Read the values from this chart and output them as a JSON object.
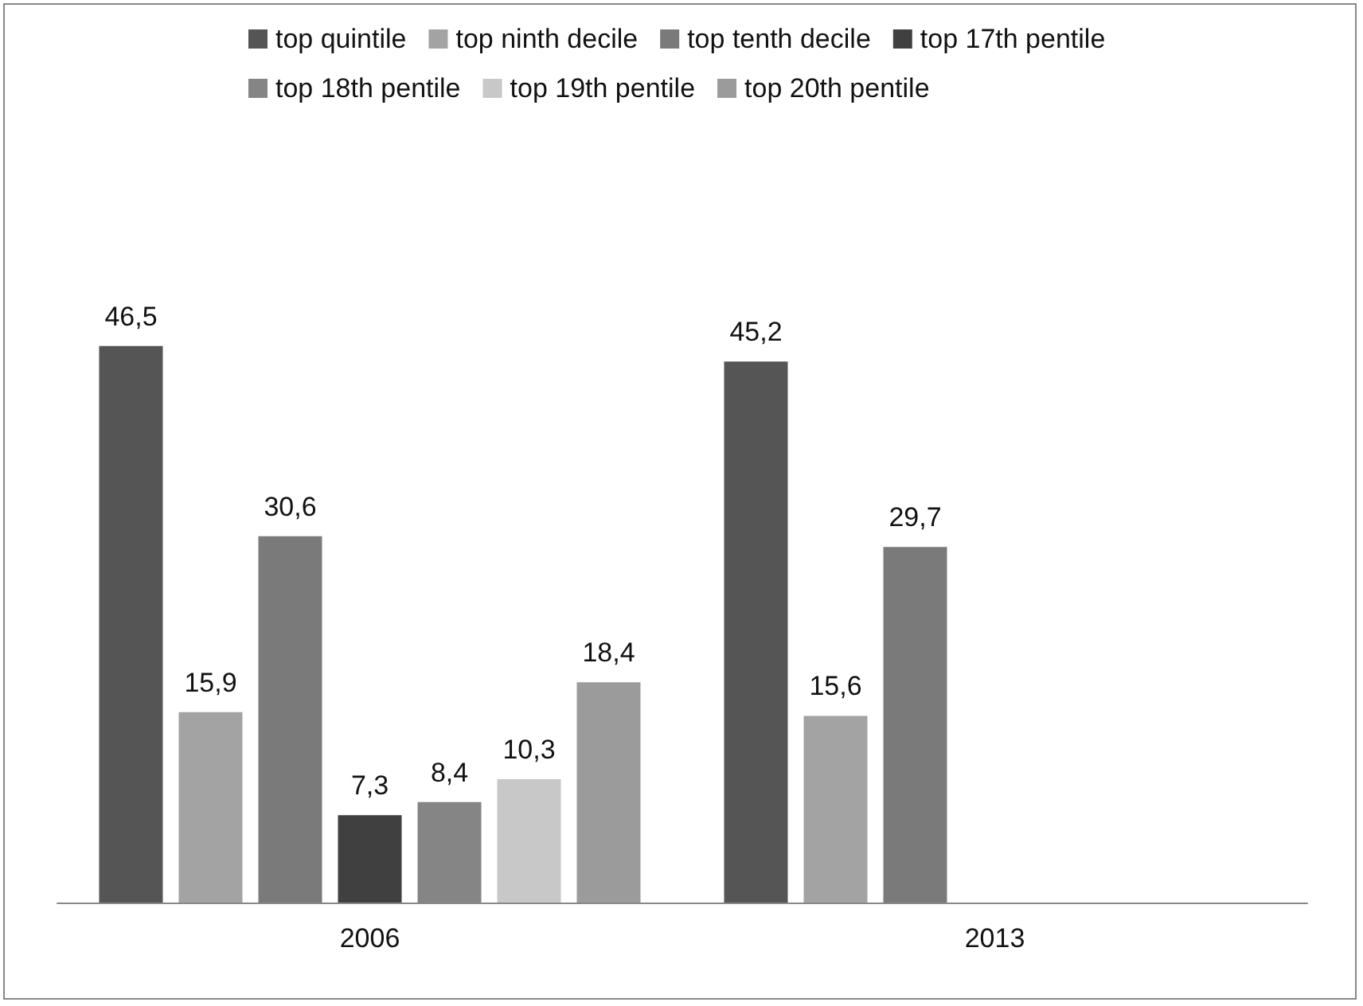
{
  "chart_data": {
    "type": "bar",
    "categories": [
      "2006",
      "2013"
    ],
    "series": [
      {
        "name": "top quintile",
        "color": "#555555",
        "values": [
          46.5,
          45.2
        ],
        "value_labels": [
          "46,5",
          "45,2"
        ]
      },
      {
        "name": "top ninth decile",
        "color": "#a3a3a3",
        "values": [
          15.9,
          15.6
        ],
        "value_labels": [
          "15,9",
          "15,6"
        ]
      },
      {
        "name": "top tenth decile",
        "color": "#7a7a7a",
        "values": [
          30.6,
          29.7
        ],
        "value_labels": [
          "30,6",
          "29,7"
        ]
      },
      {
        "name": "top 17th pentile",
        "color": "#404040",
        "values": [
          7.3,
          null
        ],
        "value_labels": [
          "7,3",
          null
        ]
      },
      {
        "name": "top 18th pentile",
        "color": "#858585",
        "values": [
          8.4,
          null
        ],
        "value_labels": [
          "8,4",
          null
        ]
      },
      {
        "name": "top 19th pentile",
        "color": "#c8c8c8",
        "values": [
          10.3,
          null
        ],
        "value_labels": [
          "10,3",
          null
        ]
      },
      {
        "name": "top 20th pentile",
        "color": "#9b9b9b",
        "values": [
          18.4,
          null
        ],
        "value_labels": [
          "18,4",
          null
        ]
      }
    ],
    "legend": "top"
  }
}
